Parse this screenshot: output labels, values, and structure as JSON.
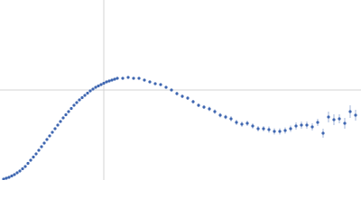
{
  "chart_data": {
    "type": "scatter",
    "color": "#3f67b1",
    "grid": true,
    "xlim": [
      0,
      400
    ],
    "ylim": [
      0,
      200
    ],
    "xticks": [
      115
    ],
    "yticks": [
      100
    ],
    "x": [
      4,
      7,
      10,
      13,
      16,
      19,
      22,
      25,
      28,
      31,
      34,
      37,
      40,
      43,
      46,
      49,
      52,
      55,
      58,
      61,
      64,
      67,
      70,
      73,
      76,
      79,
      82,
      85,
      88,
      91,
      94,
      97,
      100,
      103,
      106,
      109,
      112,
      115,
      118,
      121,
      124,
      127,
      130,
      136,
      142,
      148,
      154,
      160,
      166,
      172,
      178,
      184,
      190,
      196,
      202,
      208,
      214,
      220,
      226,
      232,
      238,
      244,
      250,
      256,
      262,
      268,
      274,
      280,
      286,
      292,
      298,
      304,
      310,
      316,
      322,
      328,
      334,
      340,
      346,
      352,
      358,
      364,
      370,
      376,
      382,
      388,
      394
    ],
    "values": [
      1,
      2,
      3,
      4.5,
      6,
      8,
      10,
      12.5,
      15,
      18.5,
      22,
      25.5,
      29,
      33,
      37,
      41,
      45,
      49,
      53,
      57,
      61,
      65,
      69,
      72.5,
      76,
      79.5,
      83,
      86,
      89,
      91.5,
      94,
      96.5,
      99,
      101,
      103,
      104.5,
      106,
      107.5,
      109,
      110,
      111,
      112,
      113,
      113,
      114,
      113,
      113,
      111,
      109,
      107,
      106,
      103,
      100,
      96,
      93,
      91,
      87,
      83,
      81,
      79,
      76,
      72,
      70,
      68,
      64,
      62,
      63,
      60,
      57,
      57,
      56,
      54,
      54,
      55,
      57,
      60,
      61,
      61,
      59,
      64,
      52,
      70,
      67,
      68,
      63,
      76,
      72
    ],
    "errors": [
      0.5,
      0.5,
      0.5,
      0.5,
      0.5,
      0.5,
      0.5,
      0.5,
      0.5,
      0.5,
      0.5,
      0.5,
      0.5,
      0.5,
      0.5,
      0.5,
      0.5,
      0.5,
      0.5,
      0.5,
      0.5,
      0.5,
      0.5,
      0.5,
      0.5,
      0.5,
      0.5,
      0.5,
      0.5,
      0.5,
      0.5,
      0.5,
      0.5,
      0.5,
      0.5,
      0.5,
      0.5,
      0.5,
      0.5,
      0.5,
      0.5,
      0.5,
      1,
      1,
      1,
      1,
      1,
      1,
      1.5,
      1.5,
      1.5,
      1.5,
      1.5,
      2,
      2,
      2,
      2,
      2,
      2,
      2.5,
      2.5,
      2.5,
      2.5,
      3,
      3,
      3,
      3,
      3,
      3,
      3,
      3.5,
      3.5,
      3.5,
      3.5,
      3.5,
      4,
      4,
      4,
      4,
      4,
      5,
      6,
      6,
      5,
      6,
      7,
      6
    ]
  }
}
